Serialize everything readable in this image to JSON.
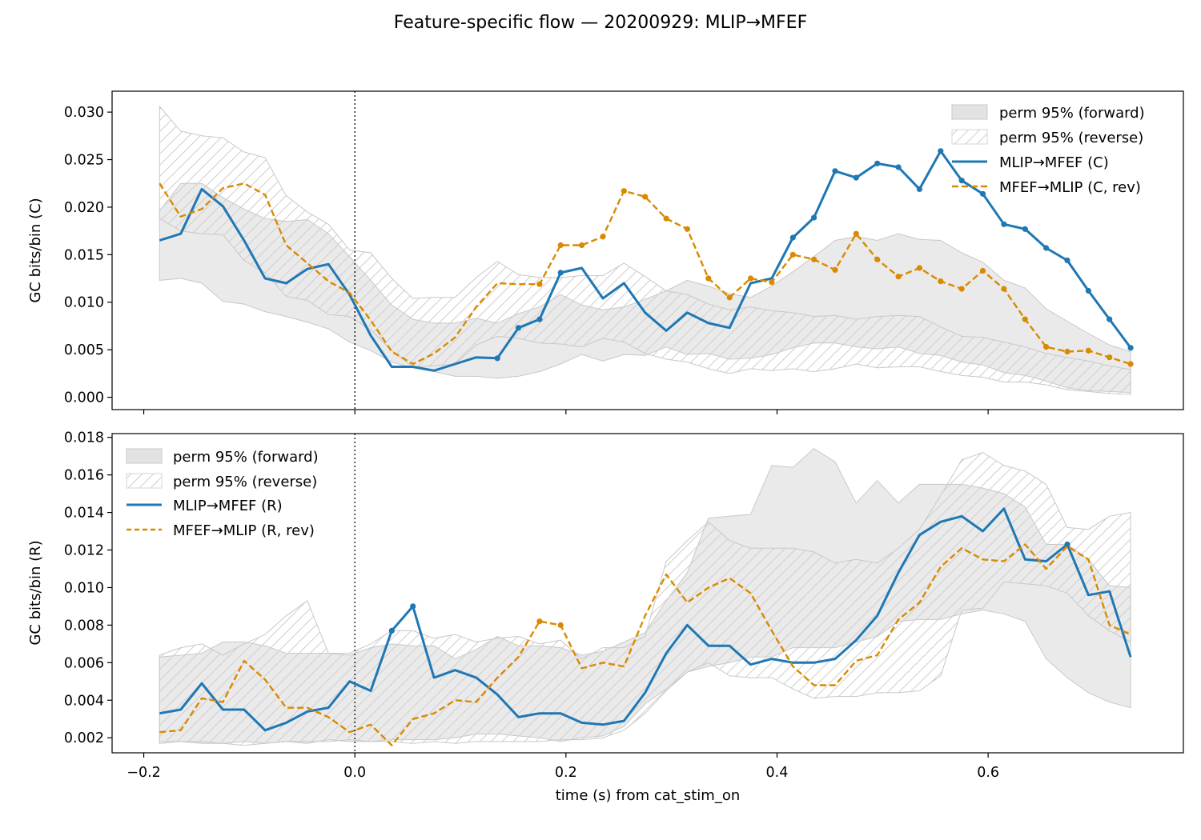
{
  "figure": {
    "title": "Feature-specific flow — 20200929: MLIP→MFEF",
    "xlabel": "time (s) from cat_stim_on"
  },
  "colors": {
    "forward": "#1f77b4",
    "reverse": "#d98a00",
    "band_forward": "#e3e3e3",
    "band_edge": "#c8c8c8",
    "hatch": "#cfcfcf"
  },
  "chart_data": [
    {
      "type": "line",
      "panel": "top",
      "ylabel": "GC bits/bin (C)",
      "xlim": [
        -0.23,
        0.785
      ],
      "ylim": [
        -0.0013,
        0.0322
      ],
      "xticks": [
        -0.2,
        0.0,
        0.2,
        0.4,
        0.6
      ],
      "xticklabels": [
        "−0.2",
        "0.0",
        "0.2",
        "0.4",
        "0.6"
      ],
      "show_xticklabels": false,
      "yticks": [
        0.0,
        0.005,
        0.01,
        0.015,
        0.02,
        0.025,
        0.03
      ],
      "yticklabels": [
        "0.000",
        "0.005",
        "0.010",
        "0.015",
        "0.020",
        "0.025",
        "0.030"
      ],
      "vline_x": 0.0,
      "grid": false,
      "legend_position": "top-right",
      "legend": [
        "perm 95% (forward)",
        "perm 95% (reverse)",
        "MLIP→MFEF (C)",
        "MFEF→MLIP (C, rev)"
      ],
      "x": [
        -0.185,
        -0.165,
        -0.145,
        -0.125,
        -0.105,
        -0.085,
        -0.065,
        -0.045,
        -0.025,
        -0.005,
        0.015,
        0.035,
        0.055,
        0.075,
        0.095,
        0.115,
        0.135,
        0.155,
        0.175,
        0.195,
        0.215,
        0.235,
        0.255,
        0.275,
        0.295,
        0.315,
        0.335,
        0.355,
        0.375,
        0.395,
        0.415,
        0.435,
        0.455,
        0.475,
        0.495,
        0.515,
        0.535,
        0.555,
        0.575,
        0.595,
        0.615,
        0.635,
        0.655,
        0.675,
        0.695,
        0.715,
        0.735
      ],
      "series": [
        {
          "name": "MLIP→MFEF (C)",
          "style": "solid",
          "markers": "significant",
          "values": [
            0.0165,
            0.0172,
            0.0219,
            0.0201,
            0.0165,
            0.0125,
            0.012,
            0.0135,
            0.014,
            0.0108,
            0.0065,
            0.0032,
            0.0032,
            0.0028,
            0.0035,
            0.0042,
            0.0041,
            0.0073,
            0.0082,
            0.0131,
            0.0136,
            0.0104,
            0.012,
            0.0089,
            0.007,
            0.0089,
            0.0078,
            0.0073,
            0.012,
            0.0125,
            0.0168,
            0.0189,
            0.0238,
            0.0231,
            0.0246,
            0.0242,
            0.0219,
            0.0259,
            0.0228,
            0.0214,
            0.0182,
            0.0177,
            0.0157,
            0.0144,
            0.0112,
            0.0082,
            0.0052
          ],
          "significant": [
            16,
            17,
            18,
            19,
            30,
            31,
            32,
            33,
            34,
            35,
            36,
            37,
            38,
            39,
            40,
            41,
            42,
            43,
            44,
            45,
            46
          ]
        },
        {
          "name": "MFEF→MLIP (C, rev)",
          "style": "dashed",
          "markers": "significant",
          "values": [
            0.0225,
            0.019,
            0.0198,
            0.022,
            0.0225,
            0.0213,
            0.016,
            0.0141,
            0.0122,
            0.011,
            0.0081,
            0.0048,
            0.0035,
            0.0046,
            0.0063,
            0.0095,
            0.012,
            0.0119,
            0.0119,
            0.016,
            0.016,
            0.0169,
            0.0217,
            0.0211,
            0.0188,
            0.0177,
            0.0125,
            0.0105,
            0.0125,
            0.0121,
            0.015,
            0.0145,
            0.0134,
            0.0172,
            0.0145,
            0.0127,
            0.0136,
            0.0122,
            0.0114,
            0.0133,
            0.0114,
            0.0082,
            0.0053,
            0.0048,
            0.0049,
            0.0042,
            0.0035
          ],
          "significant": [
            18,
            19,
            20,
            21,
            22,
            23,
            24,
            25,
            26,
            27,
            28,
            29,
            30,
            31,
            32,
            33,
            34,
            35,
            36,
            37,
            38,
            39,
            40,
            41,
            42,
            43,
            44,
            45,
            46
          ]
        }
      ],
      "bands": [
        {
          "name": "perm 95% (forward)",
          "fill": "solid",
          "low": [
            0.0123,
            0.0125,
            0.012,
            0.0101,
            0.0098,
            0.009,
            0.0085,
            0.0079,
            0.0072,
            0.0058,
            0.0049,
            0.0037,
            0.0031,
            0.0027,
            0.0022,
            0.0022,
            0.002,
            0.0022,
            0.0027,
            0.0035,
            0.0045,
            0.0038,
            0.0045,
            0.0044,
            0.0053,
            0.0045,
            0.0046,
            0.004,
            0.0041,
            0.0045,
            0.0052,
            0.0057,
            0.0057,
            0.0053,
            0.0051,
            0.0053,
            0.0046,
            0.0044,
            0.0037,
            0.0034,
            0.0026,
            0.0023,
            0.0017,
            0.001,
            0.0007,
            0.0006,
            0.0005
          ],
          "high": [
            0.0196,
            0.0225,
            0.0225,
            0.021,
            0.0198,
            0.0188,
            0.0185,
            0.0187,
            0.0172,
            0.0148,
            0.0123,
            0.0097,
            0.0082,
            0.0078,
            0.0078,
            0.0083,
            0.0078,
            0.0088,
            0.0095,
            0.0108,
            0.0097,
            0.0092,
            0.0095,
            0.0103,
            0.0112,
            0.0123,
            0.0117,
            0.0109,
            0.0105,
            0.0117,
            0.0132,
            0.0148,
            0.0165,
            0.0169,
            0.0165,
            0.0172,
            0.0166,
            0.0165,
            0.0152,
            0.0142,
            0.0123,
            0.0115,
            0.0093,
            0.008,
            0.0067,
            0.0055,
            0.0048
          ]
        },
        {
          "name": "perm 95% (reverse)",
          "fill": "hatch",
          "low": [
            0.0188,
            0.0175,
            0.0172,
            0.0171,
            0.0144,
            0.0131,
            0.0106,
            0.0102,
            0.0087,
            0.0085,
            0.0071,
            0.0049,
            0.0032,
            0.0033,
            0.0035,
            0.0055,
            0.0064,
            0.0062,
            0.0057,
            0.0056,
            0.0053,
            0.0062,
            0.0058,
            0.0046,
            0.004,
            0.0037,
            0.003,
            0.0025,
            0.003,
            0.0028,
            0.003,
            0.0027,
            0.003,
            0.0035,
            0.0031,
            0.0032,
            0.0032,
            0.0027,
            0.0023,
            0.0021,
            0.0016,
            0.0016,
            0.0013,
            0.0008,
            0.0006,
            0.0004,
            0.0003
          ],
          "high": [
            0.0306,
            0.028,
            0.0275,
            0.0273,
            0.0258,
            0.0252,
            0.0212,
            0.0195,
            0.0182,
            0.0155,
            0.0152,
            0.0125,
            0.0104,
            0.0105,
            0.0105,
            0.0126,
            0.0143,
            0.0129,
            0.0126,
            0.0126,
            0.0128,
            0.0128,
            0.0141,
            0.0127,
            0.0112,
            0.0108,
            0.0098,
            0.0092,
            0.0095,
            0.0091,
            0.0089,
            0.0085,
            0.0086,
            0.0082,
            0.0085,
            0.0086,
            0.0085,
            0.0074,
            0.0064,
            0.0063,
            0.0058,
            0.0053,
            0.0046,
            0.0042,
            0.0038,
            0.0033,
            0.0029
          ]
        }
      ]
    },
    {
      "type": "line",
      "panel": "bottom",
      "ylabel": "GC bits/bin (R)",
      "xlim": [
        -0.23,
        0.785
      ],
      "ylim": [
        0.0012,
        0.0182
      ],
      "xticks": [
        -0.2,
        0.0,
        0.2,
        0.4,
        0.6
      ],
      "xticklabels": [
        "−0.2",
        "0.0",
        "0.2",
        "0.4",
        "0.6"
      ],
      "show_xticklabels": true,
      "yticks": [
        0.002,
        0.004,
        0.006,
        0.008,
        0.01,
        0.012,
        0.014,
        0.016,
        0.018
      ],
      "yticklabels": [
        "0.002",
        "0.004",
        "0.006",
        "0.008",
        "0.010",
        "0.012",
        "0.014",
        "0.016",
        "0.018"
      ],
      "vline_x": 0.0,
      "grid": false,
      "legend_position": "top-left",
      "legend": [
        "perm 95% (forward)",
        "perm 95% (reverse)",
        "MLIP→MFEF (R)",
        "MFEF→MLIP (R, rev)"
      ],
      "x": [
        -0.185,
        -0.165,
        -0.145,
        -0.125,
        -0.105,
        -0.085,
        -0.065,
        -0.045,
        -0.025,
        -0.005,
        0.015,
        0.035,
        0.055,
        0.075,
        0.095,
        0.115,
        0.135,
        0.155,
        0.175,
        0.195,
        0.215,
        0.235,
        0.255,
        0.275,
        0.295,
        0.315,
        0.335,
        0.355,
        0.375,
        0.395,
        0.415,
        0.435,
        0.455,
        0.475,
        0.495,
        0.515,
        0.535,
        0.555,
        0.575,
        0.595,
        0.615,
        0.635,
        0.655,
        0.675,
        0.695,
        0.715,
        0.735
      ],
      "series": [
        {
          "name": "MLIP→MFEF (R)",
          "style": "solid",
          "markers": "significant",
          "values": [
            0.0033,
            0.0035,
            0.0049,
            0.0035,
            0.0035,
            0.0024,
            0.0028,
            0.0034,
            0.0036,
            0.005,
            0.0045,
            0.0077,
            0.009,
            0.0052,
            0.0056,
            0.0052,
            0.0043,
            0.0031,
            0.0033,
            0.0033,
            0.0028,
            0.0027,
            0.0029,
            0.0044,
            0.0065,
            0.008,
            0.0069,
            0.0069,
            0.0059,
            0.0062,
            0.006,
            0.006,
            0.0062,
            0.0072,
            0.0085,
            0.0108,
            0.0128,
            0.0135,
            0.0138,
            0.013,
            0.0142,
            0.0115,
            0.0114,
            0.0123,
            0.0096,
            0.0098,
            0.0063
          ],
          "significant": [
            11,
            12,
            43
          ]
        },
        {
          "name": "MFEF→MLIP (R, rev)",
          "style": "dashed",
          "markers": "significant",
          "values": [
            0.0023,
            0.0024,
            0.0041,
            0.0039,
            0.0061,
            0.0051,
            0.0036,
            0.0036,
            0.0031,
            0.0023,
            0.0027,
            0.0016,
            0.003,
            0.0033,
            0.004,
            0.0039,
            0.0052,
            0.0063,
            0.0082,
            0.008,
            0.0057,
            0.006,
            0.0058,
            0.0085,
            0.0107,
            0.0092,
            0.01,
            0.0105,
            0.0097,
            0.0077,
            0.0058,
            0.0048,
            0.0048,
            0.0061,
            0.0064,
            0.0083,
            0.0092,
            0.0111,
            0.0121,
            0.0115,
            0.0114,
            0.0123,
            0.011,
            0.0122,
            0.0115,
            0.008,
            0.0075
          ],
          "significant": [
            18,
            19
          ]
        }
      ],
      "bands": [
        {
          "name": "perm 95% (forward)",
          "fill": "solid",
          "low": [
            0.0018,
            0.0018,
            0.0017,
            0.0017,
            0.0018,
            0.0017,
            0.0018,
            0.0017,
            0.0019,
            0.0018,
            0.0018,
            0.0019,
            0.0019,
            0.0019,
            0.002,
            0.0022,
            0.0022,
            0.0021,
            0.002,
            0.0018,
            0.002,
            0.0021,
            0.0026,
            0.0038,
            0.0046,
            0.0055,
            0.0058,
            0.006,
            0.0063,
            0.0063,
            0.0068,
            0.0068,
            0.0068,
            0.0071,
            0.0074,
            0.0082,
            0.0083,
            0.0083,
            0.0086,
            0.0088,
            0.0086,
            0.0082,
            0.0062,
            0.0052,
            0.0044,
            0.0039,
            0.0036
          ],
          "high": [
            0.0063,
            0.0064,
            0.0065,
            0.0071,
            0.0071,
            0.0069,
            0.0065,
            0.0065,
            0.0065,
            0.0064,
            0.0068,
            0.007,
            0.0069,
            0.0069,
            0.0062,
            0.0067,
            0.0074,
            0.0069,
            0.0069,
            0.0068,
            0.0064,
            0.0066,
            0.0071,
            0.0076,
            0.0093,
            0.0108,
            0.0137,
            0.0138,
            0.0139,
            0.0165,
            0.0164,
            0.0174,
            0.0167,
            0.0145,
            0.0157,
            0.0145,
            0.0155,
            0.0155,
            0.0155,
            0.0153,
            0.015,
            0.0143,
            0.0123,
            0.0123,
            0.0115,
            0.0101,
            0.01
          ]
        },
        {
          "name": "perm 95% (reverse)",
          "fill": "hatch",
          "low": [
            0.0017,
            0.0018,
            0.0018,
            0.0017,
            0.0016,
            0.0017,
            0.0018,
            0.0018,
            0.0018,
            0.0019,
            0.0018,
            0.0018,
            0.0017,
            0.0018,
            0.0017,
            0.0018,
            0.0018,
            0.0018,
            0.0018,
            0.0019,
            0.0019,
            0.002,
            0.0024,
            0.0033,
            0.0045,
            0.0055,
            0.006,
            0.0053,
            0.0052,
            0.0052,
            0.0046,
            0.0041,
            0.0042,
            0.0042,
            0.0044,
            0.0044,
            0.0045,
            0.0053,
            0.0088,
            0.0089,
            0.0103,
            0.0102,
            0.0101,
            0.0097,
            0.0085,
            0.0077,
            0.0071
          ],
          "high": [
            0.0064,
            0.0068,
            0.007,
            0.0064,
            0.007,
            0.0075,
            0.0085,
            0.0093,
            0.0065,
            0.0065,
            0.007,
            0.0077,
            0.0077,
            0.0073,
            0.0075,
            0.0071,
            0.0073,
            0.0074,
            0.007,
            0.0072,
            0.0062,
            0.0068,
            0.0068,
            0.0074,
            0.0114,
            0.0125,
            0.0135,
            0.0125,
            0.0121,
            0.0121,
            0.0121,
            0.0119,
            0.0113,
            0.0115,
            0.0113,
            0.0121,
            0.0131,
            0.0149,
            0.0168,
            0.0172,
            0.0165,
            0.0162,
            0.0155,
            0.0132,
            0.0131,
            0.0138,
            0.014
          ]
        }
      ]
    }
  ]
}
